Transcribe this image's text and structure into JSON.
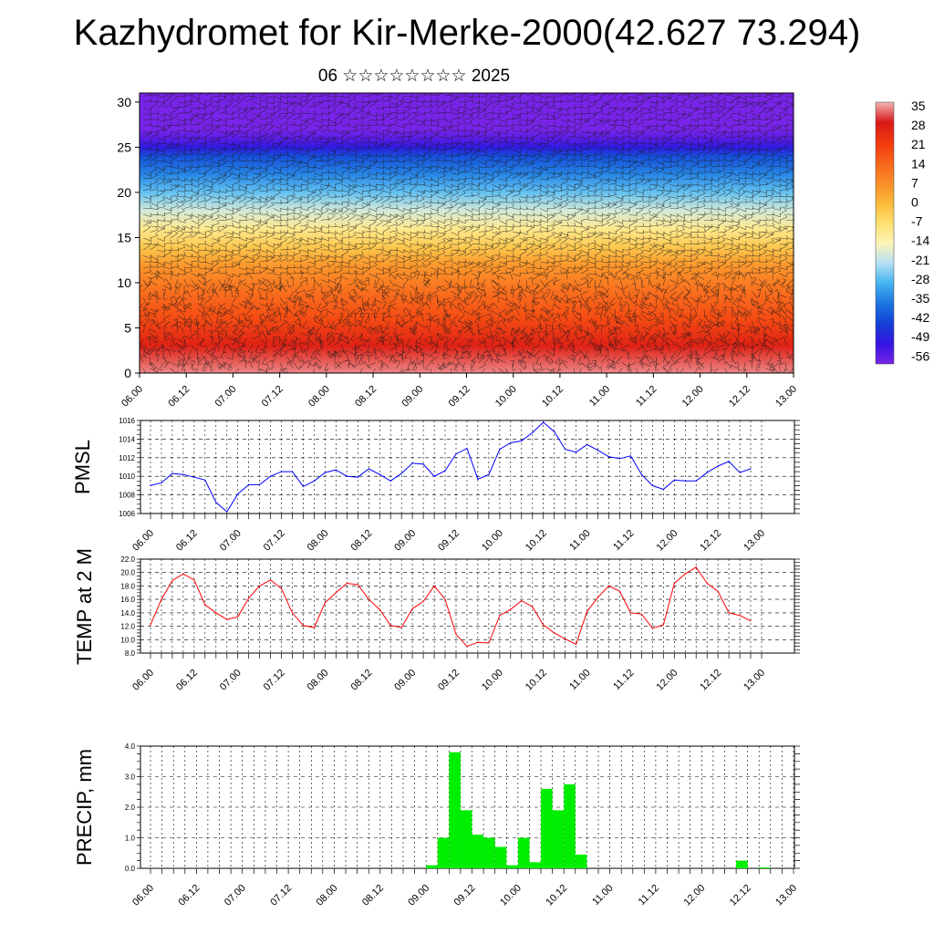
{
  "figure": {
    "title": "Kazhydromet for Kir-Merke-2000(42.627 73.294)",
    "subtitle": "06 ☆☆☆☆☆☆☆☆ 2025"
  },
  "colorbar": {
    "labels": [
      "35",
      "28",
      "21",
      "14",
      "7",
      "0",
      "-7",
      "-14",
      "-21",
      "-28",
      "-35",
      "-42",
      "-49",
      "-56"
    ],
    "colors": [
      "#f4b4b4",
      "#d81818",
      "#f2380e",
      "#f8641a",
      "#fa8c28",
      "#fcb838",
      "#fde070",
      "#fdf4b8",
      "#b4e0f4",
      "#44b4f0",
      "#1c74e0",
      "#1440d8",
      "#3414e0",
      "#7824e8"
    ]
  },
  "chart_data": [
    {
      "type": "heatmap",
      "name": "cross-section",
      "description": "height-time section: temperature shading (deg C) with wind barbs",
      "x_ticks": [
        "06.00",
        "06.12",
        "07.00",
        "07.12",
        "08.00",
        "08.12",
        "09.00",
        "09.12",
        "10.00",
        "10.12",
        "11.00",
        "11.12",
        "12.00",
        "12.12",
        "13.00"
      ],
      "y_ticks": [
        0,
        5,
        10,
        15,
        20,
        25,
        30
      ],
      "ylim": [
        0,
        31
      ],
      "temperature_profile": {
        "height": [
          0,
          3,
          6,
          9,
          12,
          14,
          16,
          18,
          20,
          22,
          24,
          25,
          26,
          27,
          28,
          29,
          31
        ],
        "temp": [
          33,
          26,
          18,
          12,
          5,
          -3,
          -10,
          -18,
          -26,
          -33,
          -40,
          -48,
          -53,
          -56,
          -58,
          -60,
          -62
        ]
      }
    },
    {
      "type": "line",
      "name": "PMSL",
      "ylabel": "PMSL",
      "color": "#0000ff",
      "ylim": [
        1006,
        1016
      ],
      "y_ticks": [
        1006,
        1008,
        1010,
        1012,
        1014,
        1016
      ],
      "y_tick_labels": [
        "1006",
        "1008",
        "1010",
        "1012",
        "1014",
        "1016"
      ],
      "x_ticks": [
        "06.00",
        "06.12",
        "07.00",
        "07.12",
        "08.00",
        "08.12",
        "09.00",
        "09.12",
        "10.00",
        "10.12",
        "11.00",
        "11.12",
        "12.00",
        "12.12",
        "13.00"
      ],
      "x_hours": [
        0,
        3,
        6,
        9,
        12,
        15,
        18,
        21,
        24,
        27,
        30,
        33,
        36,
        39,
        42,
        45,
        48,
        51,
        54,
        57,
        60,
        63,
        66,
        69,
        72,
        75,
        78,
        81,
        84,
        87,
        90,
        93,
        96,
        99,
        102,
        105,
        108,
        111,
        114,
        117,
        120,
        123,
        126,
        129,
        132,
        135,
        138,
        141,
        144,
        147,
        150,
        153,
        156,
        159,
        162,
        165
      ],
      "values": [
        1009.0,
        1009.3,
        1010.3,
        1010.2,
        1009.9,
        1009.6,
        1007.2,
        1006.2,
        1008.1,
        1009.1,
        1009.1,
        1010.0,
        1010.5,
        1010.5,
        1008.9,
        1009.5,
        1010.4,
        1010.7,
        1010.0,
        1009.9,
        1010.8,
        1010.2,
        1009.5,
        1010.3,
        1011.4,
        1011.3,
        1010.0,
        1010.6,
        1012.4,
        1013.0,
        1009.7,
        1010.2,
        1012.9,
        1013.6,
        1013.8,
        1014.7,
        1015.8,
        1014.8,
        1012.9,
        1012.6,
        1013.4,
        1012.8,
        1012.1,
        1011.9,
        1012.2,
        1010.2,
        1009.0,
        1008.6,
        1009.6,
        1009.5,
        1009.5,
        1010.4,
        1011.1,
        1011.6,
        1010.4,
        1010.8
      ]
    },
    {
      "type": "line",
      "name": "TEMP at 2 M",
      "ylabel": "TEMP at 2 M",
      "color": "#ff0000",
      "ylim": [
        8,
        22
      ],
      "y_ticks": [
        8,
        10,
        12,
        14,
        16,
        18,
        20,
        22
      ],
      "y_tick_labels": [
        "8.0",
        "10.0",
        "12.0",
        "14.0",
        "16.0",
        "18.0",
        "20.0",
        "22.0"
      ],
      "x_ticks": [
        "06.00",
        "06.12",
        "07.00",
        "07.12",
        "08.00",
        "08.12",
        "09.00",
        "09.12",
        "10.00",
        "10.12",
        "11.00",
        "11.12",
        "12.00",
        "12.12",
        "13.00"
      ],
      "x_hours": [
        0,
        3,
        6,
        9,
        12,
        15,
        18,
        21,
        24,
        27,
        30,
        33,
        36,
        39,
        42,
        45,
        48,
        51,
        54,
        57,
        60,
        63,
        66,
        69,
        72,
        75,
        78,
        81,
        84,
        87,
        90,
        93,
        96,
        99,
        102,
        105,
        108,
        111,
        114,
        117,
        120,
        123,
        126,
        129,
        132,
        135,
        138,
        141,
        144,
        147,
        150,
        153,
        156,
        159,
        162,
        165
      ],
      "values": [
        12.2,
        16.0,
        18.8,
        19.8,
        18.9,
        15.2,
        14.0,
        13.0,
        13.4,
        16.2,
        18.0,
        18.9,
        17.6,
        14.0,
        12.1,
        11.8,
        15.5,
        17.0,
        18.4,
        18.2,
        16.0,
        14.5,
        12.1,
        11.8,
        14.6,
        15.7,
        18.0,
        16.0,
        10.8,
        9.0,
        9.6,
        9.5,
        13.6,
        14.5,
        15.8,
        14.9,
        12.2,
        11.0,
        10.1,
        9.3,
        14.2,
        16.3,
        18.0,
        17.2,
        14.0,
        13.8,
        11.7,
        12.2,
        18.4,
        19.8,
        20.8,
        18.4,
        17.2,
        14.0,
        13.6,
        12.8
      ]
    },
    {
      "type": "bar",
      "name": "PRECIP, mm",
      "ylabel": "PRECIP, mm",
      "color": "#00ee00",
      "ylim": [
        0,
        4
      ],
      "y_ticks": [
        0,
        1,
        2,
        3,
        4
      ],
      "y_tick_labels": [
        "0.0",
        "1.0",
        "2.0",
        "3.0",
        "4.0"
      ],
      "x_ticks": [
        "06.00",
        "06.12",
        "07.00",
        "07.12",
        "08.00",
        "08.12",
        "09.00",
        "09.12",
        "10.00",
        "10.12",
        "11.00",
        "11.12",
        "12.00",
        "12.12",
        "13.00"
      ],
      "bar_hours": [
        72,
        75,
        78,
        81,
        84,
        87,
        90,
        93,
        96,
        99,
        102,
        105,
        108,
        111,
        114,
        117,
        120,
        123,
        126,
        129,
        132,
        135,
        138,
        141,
        144,
        147,
        150,
        153,
        156,
        159
      ],
      "values": [
        0.1,
        1.0,
        3.8,
        1.9,
        1.1,
        1.0,
        0.7,
        0.1,
        1.0,
        0.2,
        2.6,
        1.9,
        2.75,
        0.45,
        0,
        0,
        0,
        0,
        0,
        0,
        0,
        0,
        0,
        0,
        0,
        0,
        0,
        0.25,
        0,
        0.03
      ]
    }
  ]
}
